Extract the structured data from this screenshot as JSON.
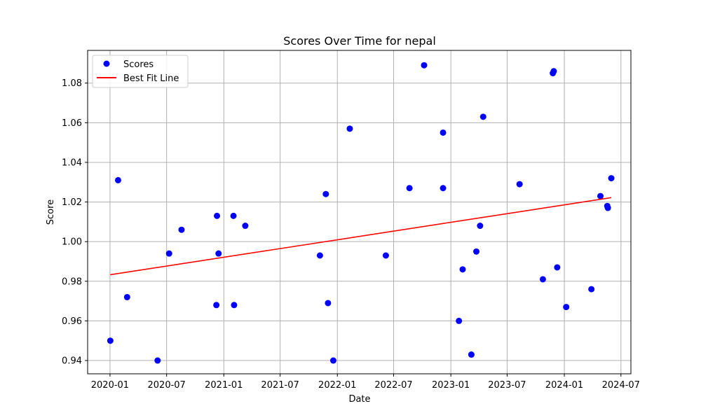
{
  "chart_data": {
    "type": "scatter",
    "title": "Scores Over Time for nepal",
    "xlabel": "Date",
    "ylabel": "Score",
    "xlim": [
      "2019-10-21",
      "2024-08-02"
    ],
    "ylim": [
      0.9333,
      1.0965
    ],
    "x_ticks": [
      "2020-01",
      "2020-07",
      "2021-01",
      "2021-07",
      "2022-01",
      "2022-07",
      "2023-01",
      "2023-07",
      "2024-01",
      "2024-07"
    ],
    "y_ticks": [
      0.94,
      0.96,
      0.98,
      1.0,
      1.02,
      1.04,
      1.06,
      1.08
    ],
    "grid": true,
    "legend_position": "top-left",
    "series": [
      {
        "name": "Scores",
        "kind": "scatter",
        "color": "#0000ff",
        "points": [
          {
            "x": "2020-01-02",
            "y": 0.95
          },
          {
            "x": "2020-01-27",
            "y": 1.031
          },
          {
            "x": "2020-02-25",
            "y": 0.972
          },
          {
            "x": "2020-06-02",
            "y": 0.94
          },
          {
            "x": "2020-07-09",
            "y": 0.994
          },
          {
            "x": "2020-08-18",
            "y": 1.006
          },
          {
            "x": "2020-12-08",
            "y": 0.968
          },
          {
            "x": "2020-12-10",
            "y": 1.013
          },
          {
            "x": "2020-12-15",
            "y": 0.994
          },
          {
            "x": "2021-02-01",
            "y": 1.013
          },
          {
            "x": "2021-02-03",
            "y": 0.968
          },
          {
            "x": "2021-03-11",
            "y": 1.008
          },
          {
            "x": "2021-11-06",
            "y": 0.993
          },
          {
            "x": "2021-11-25",
            "y": 1.024
          },
          {
            "x": "2021-12-02",
            "y": 0.969
          },
          {
            "x": "2021-12-19",
            "y": 0.94
          },
          {
            "x": "2022-02-10",
            "y": 1.057
          },
          {
            "x": "2022-06-06",
            "y": 0.993
          },
          {
            "x": "2022-08-21",
            "y": 1.027
          },
          {
            "x": "2022-10-07",
            "y": 1.089
          },
          {
            "x": "2022-12-07",
            "y": 1.055
          },
          {
            "x": "2022-12-07",
            "y": 1.027
          },
          {
            "x": "2023-01-27",
            "y": 0.96
          },
          {
            "x": "2023-02-08",
            "y": 0.986
          },
          {
            "x": "2023-03-08",
            "y": 0.943
          },
          {
            "x": "2023-03-24",
            "y": 0.995
          },
          {
            "x": "2023-04-05",
            "y": 1.008
          },
          {
            "x": "2023-04-15",
            "y": 1.063
          },
          {
            "x": "2023-08-10",
            "y": 1.029
          },
          {
            "x": "2023-10-24",
            "y": 0.981
          },
          {
            "x": "2023-11-25",
            "y": 1.085
          },
          {
            "x": "2023-11-28",
            "y": 1.086
          },
          {
            "x": "2023-12-09",
            "y": 0.987
          },
          {
            "x": "2024-01-07",
            "y": 0.967
          },
          {
            "x": "2024-03-28",
            "y": 0.976
          },
          {
            "x": "2024-04-26",
            "y": 1.023
          },
          {
            "x": "2024-05-18",
            "y": 1.018
          },
          {
            "x": "2024-05-20",
            "y": 1.017
          },
          {
            "x": "2024-05-31",
            "y": 1.032
          }
        ]
      },
      {
        "name": "Best Fit Line",
        "kind": "line",
        "color": "#ff0000",
        "points": [
          {
            "x": "2020-01-02",
            "y": 0.9833
          },
          {
            "x": "2024-05-31",
            "y": 1.0222
          }
        ]
      }
    ]
  }
}
